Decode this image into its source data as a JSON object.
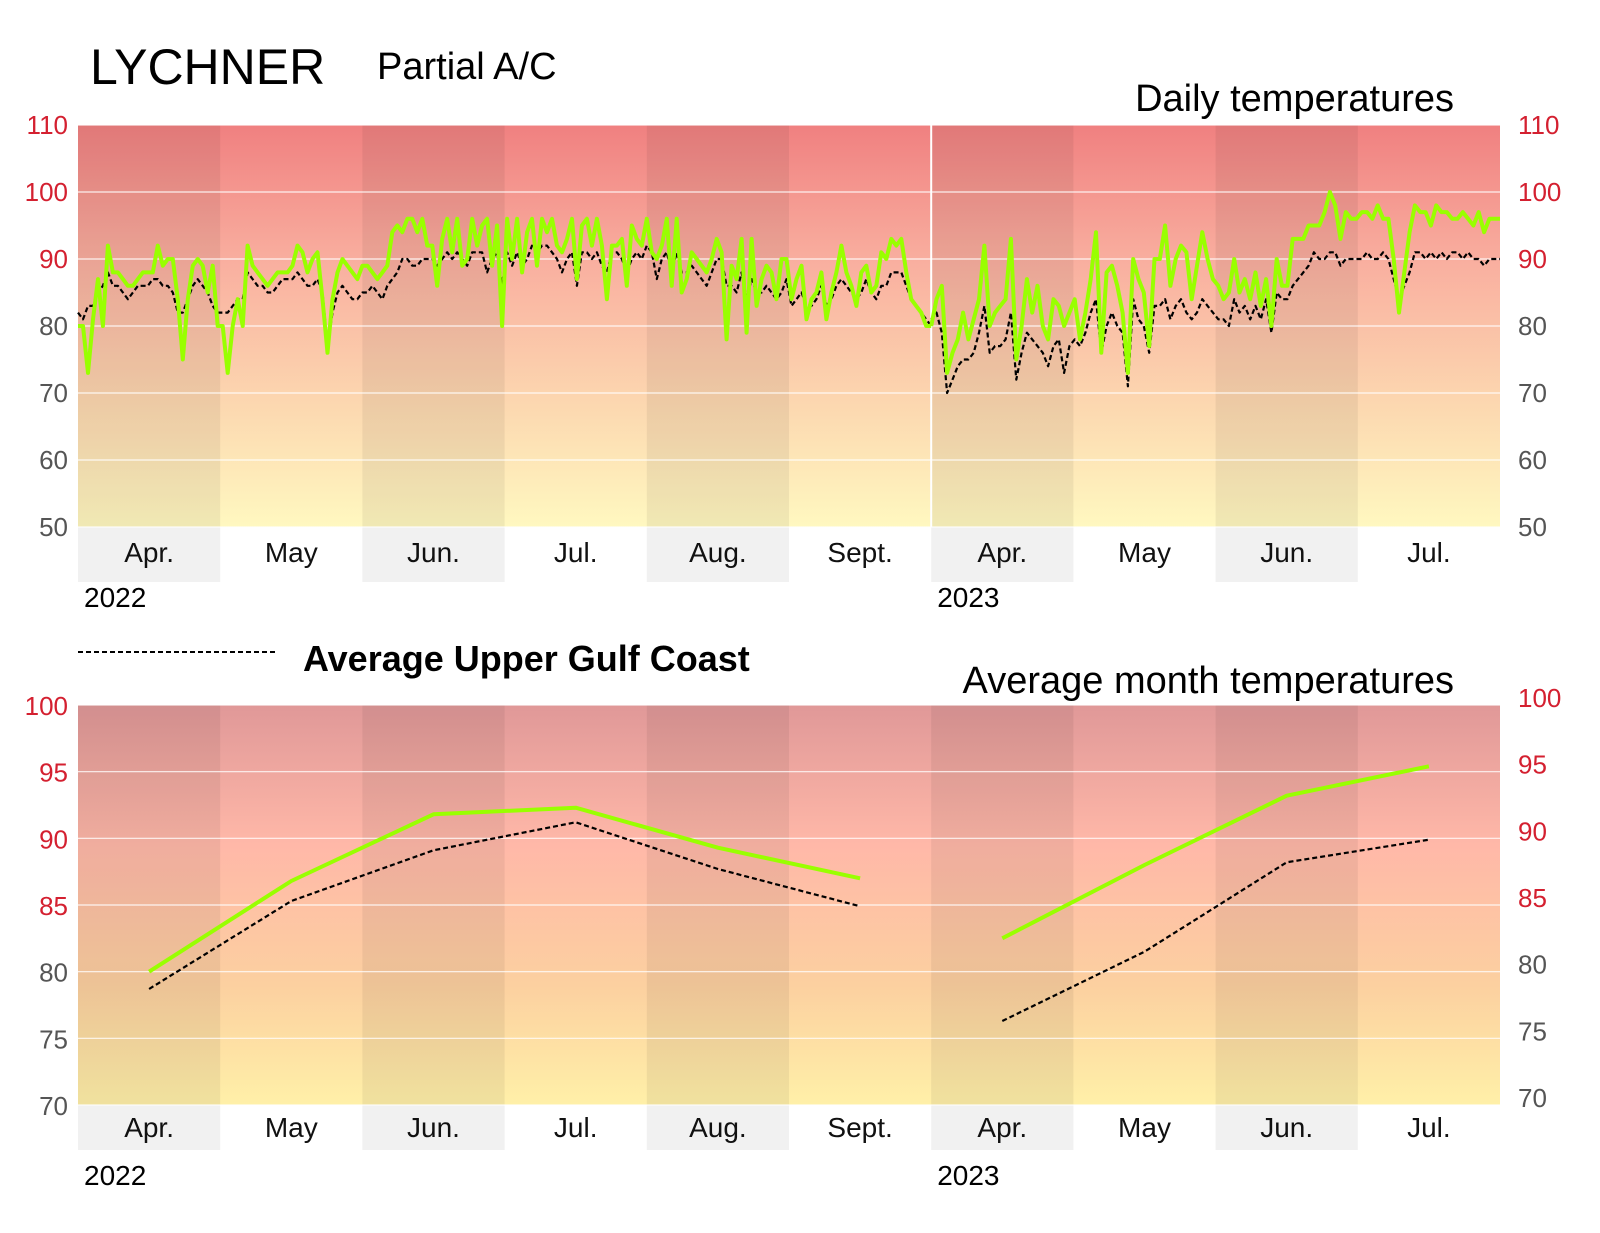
{
  "header": {
    "station": "LYCHNER",
    "ac_status": "Partial A/C"
  },
  "legend": {
    "avg_label": "Average Upper Gulf Coast"
  },
  "colors": {
    "station_line": "#99ff00",
    "average_line": "#000000",
    "hot_tick": "#d42030",
    "normal_tick": "#555555",
    "band_hot": "#f08080",
    "band_cool": "#fff8c0"
  },
  "chart_data": [
    {
      "type": "line",
      "title": "Daily temperatures",
      "ylim": [
        50,
        110
      ],
      "yticks": [
        50,
        60,
        70,
        80,
        90,
        100,
        110
      ],
      "month_labels": [
        "Apr.",
        "May",
        "Jun.",
        "Jul.",
        "Aug.",
        "Sept.",
        "Apr.",
        "May",
        "Jun.",
        "Jul."
      ],
      "year_labels": [
        "2022",
        "2023"
      ],
      "grid": true,
      "series": [
        {
          "name": "LYCHNER",
          "segments": [
            {
              "start_month": 0,
              "values": [
                80,
                80,
                73,
                81,
                87,
                80,
                92,
                88,
                88,
                87,
                86,
                86,
                87,
                88,
                88,
                88,
                92,
                89,
                90,
                90,
                84,
                75,
                84,
                89,
                90,
                89,
                85,
                89,
                80,
                80,
                73,
                80,
                84,
                80,
                92,
                89,
                88,
                87,
                86,
                87,
                88,
                88,
                88,
                89,
                92,
                91,
                88,
                90,
                91,
                84,
                76,
                84,
                88,
                90,
                89,
                88,
                87,
                89,
                89,
                88,
                87,
                88,
                89,
                94,
                95,
                94,
                96,
                96,
                94,
                96,
                92,
                92,
                86,
                93,
                96,
                91,
                96,
                89,
                90,
                96,
                92,
                95,
                96,
                89,
                95,
                80,
                96,
                90,
                96,
                88,
                94,
                96,
                89,
                96,
                94,
                96,
                92,
                91,
                93,
                96,
                87,
                95,
                96,
                92,
                96,
                92,
                84,
                92,
                92,
                93,
                86,
                95,
                93,
                92,
                96,
                91,
                90,
                92,
                96,
                86,
                96,
                85,
                87,
                91,
                90,
                89,
                88,
                90,
                93,
                91,
                78,
                89,
                87,
                93,
                79,
                93,
                83,
                87,
                89,
                88,
                84,
                90,
                90,
                84,
                87,
                89,
                81,
                84,
                85,
                88,
                81,
                85,
                88,
                92,
                88,
                86,
                83,
                88,
                89,
                85,
                86,
                91,
                90,
                93,
                92,
                93,
                88,
                84,
                83,
                82,
                80,
                80
              ]
            },
            {
              "start_month": 6,
              "values": [
                80,
                84,
                86,
                73,
                76,
                78,
                82,
                78,
                81,
                84,
                92,
                80,
                82,
                83,
                84,
                93,
                75,
                80,
                87,
                82,
                86,
                80,
                78,
                84,
                83,
                80,
                82,
                84,
                78,
                82,
                87,
                94,
                76,
                88,
                89,
                86,
                82,
                73,
                90,
                87,
                85,
                77,
                90,
                90,
                95,
                86,
                90,
                92,
                91,
                84,
                89,
                94,
                90,
                87,
                86,
                84,
                85,
                90,
                85,
                87,
                84,
                88,
                83,
                87,
                80,
                90,
                86,
                86,
                93,
                93,
                93,
                95,
                95,
                95,
                97,
                100,
                98,
                93,
                97,
                96,
                96,
                97,
                97,
                96,
                98,
                96,
                96,
                90,
                82,
                88,
                94,
                98,
                97,
                97,
                95,
                98,
                97,
                97,
                96,
                96,
                97,
                96,
                95,
                97,
                94,
                96,
                96,
                96
              ]
            }
          ]
        },
        {
          "name": "Average Upper Gulf Coast",
          "segments": [
            {
              "start_month": 0,
              "values": [
                82,
                81,
                83,
                83,
                85,
                86,
                88,
                86,
                86,
                85,
                84,
                85,
                86,
                86,
                86,
                87,
                87,
                86,
                86,
                85,
                82,
                82,
                84,
                86,
                87,
                86,
                85,
                83,
                82,
                82,
                82,
                83,
                84,
                84,
                88,
                87,
                86,
                86,
                85,
                85,
                86,
                87,
                87,
                87,
                88,
                87,
                86,
                86,
                87,
                85,
                77,
                82,
                85,
                86,
                85,
                84,
                84,
                85,
                85,
                86,
                85,
                84,
                86,
                87,
                88,
                90,
                90,
                89,
                89,
                90,
                90,
                90,
                89,
                90,
                91,
                90,
                91,
                90,
                89,
                91,
                91,
                91,
                88,
                90,
                91,
                86,
                91,
                89,
                91,
                89,
                90,
                92,
                91,
                92,
                92,
                91,
                90,
                88,
                90,
                91,
                86,
                91,
                91,
                90,
                91,
                89,
                88,
                91,
                91,
                90,
                88,
                90,
                91,
                90,
                92,
                91,
                87,
                90,
                91,
                88,
                91,
                88,
                88,
                89,
                88,
                87,
                86,
                88,
                90,
                90,
                86,
                86,
                85,
                88,
                84,
                87,
                85,
                85,
                86,
                85,
                84,
                85,
                87,
                83,
                84,
                85,
                83,
                83,
                84,
                86,
                83,
                84,
                86,
                87,
                86,
                85,
                84,
                85,
                87,
                85,
                84,
                86,
                86,
                88,
                88,
                88,
                86,
                84,
                83,
                82,
                81,
                80
              ]
            },
            {
              "start_month": 6,
              "values": [
                81,
                82,
                79,
                70,
                72,
                74,
                75,
                75,
                76,
                79,
                83,
                76,
                77,
                77,
                78,
                82,
                72,
                76,
                79,
                78,
                77,
                76,
                74,
                77,
                78,
                73,
                77,
                78,
                77,
                79,
                82,
                84,
                76,
                80,
                82,
                80,
                79,
                71,
                84,
                81,
                80,
                76,
                83,
                83,
                84,
                81,
                83,
                84,
                82,
                81,
                82,
                84,
                83,
                82,
                81,
                81,
                80,
                84,
                82,
                83,
                81,
                83,
                81,
                84,
                79,
                85,
                84,
                84,
                86,
                87,
                88,
                89,
                91,
                90,
                90,
                91,
                91,
                89,
                90,
                90,
                90,
                90,
                91,
                90,
                90,
                91,
                90,
                87,
                84,
                86,
                88,
                91,
                91,
                90,
                91,
                90,
                91,
                90,
                91,
                91,
                90,
                91,
                90,
                90,
                89,
                90,
                90,
                90
              ]
            }
          ]
        }
      ]
    },
    {
      "type": "line",
      "title": "Average month temperatures",
      "ylim": [
        70,
        100
      ],
      "yticks": [
        70,
        75,
        80,
        85,
        90,
        95,
        100
      ],
      "month_labels": [
        "Apr.",
        "May",
        "Jun.",
        "Jul.",
        "Aug.",
        "Sept.",
        "Apr.",
        "May",
        "Jun.",
        "Jul."
      ],
      "year_labels": [
        "2022",
        "2023"
      ],
      "grid": true,
      "series": [
        {
          "name": "LYCHNER",
          "segments": [
            {
              "start_month": 0,
              "values": [
                80.0,
                86.8,
                91.8,
                92.3,
                89.3,
                87.0
              ]
            },
            {
              "start_month": 6,
              "values": [
                82.5,
                88.0,
                93.2,
                95.4
              ]
            }
          ]
        },
        {
          "name": "Average Upper Gulf Coast",
          "segments": [
            {
              "start_month": 0,
              "values": [
                78.7,
                85.3,
                89.1,
                91.2,
                87.7,
                84.9
              ]
            },
            {
              "start_month": 6,
              "values": [
                76.3,
                81.5,
                88.2,
                89.9
              ]
            }
          ]
        }
      ]
    }
  ]
}
